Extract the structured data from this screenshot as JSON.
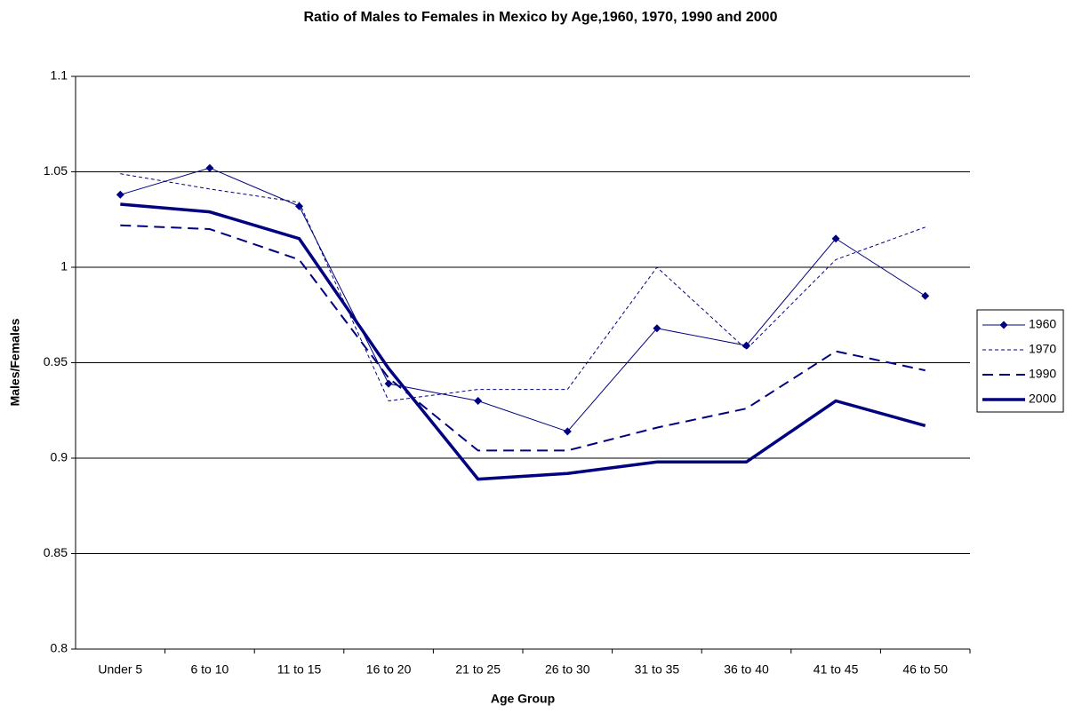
{
  "chart_data": {
    "type": "line",
    "title": "Ratio of Males to Females in Mexico by Age,1960, 1970, 1990 and 2000",
    "x_label": "Age Group",
    "y_label": "Males/Females",
    "categories": [
      "Under 5",
      "6 to 10",
      "11 to 15",
      "16 to 20",
      "21 to 25",
      "26 to 30",
      "31 to 35",
      "36 to 40",
      "41 to 45",
      "46 to 50"
    ],
    "series": [
      {
        "name": "1960",
        "color": "#000080",
        "width": 1,
        "dash": "none",
        "marker": "diamond",
        "values": [
          1.038,
          1.052,
          1.032,
          0.939,
          0.93,
          0.914,
          0.968,
          0.959,
          1.015,
          0.985
        ]
      },
      {
        "name": "1970",
        "color": "#000080",
        "width": 1,
        "dash": "4 3",
        "marker": "none",
        "values": [
          1.049,
          1.041,
          1.034,
          0.93,
          0.936,
          0.936,
          1.0,
          0.957,
          1.004,
          1.021
        ]
      },
      {
        "name": "1990",
        "color": "#000080",
        "width": 2,
        "dash": "12 7",
        "marker": "none",
        "values": [
          1.022,
          1.02,
          1.004,
          0.942,
          0.904,
          0.904,
          0.916,
          0.926,
          0.956,
          0.946
        ]
      },
      {
        "name": "2000",
        "color": "#000080",
        "width": 3.5,
        "dash": "none",
        "marker": "none",
        "values": [
          1.033,
          1.029,
          1.015,
          0.947,
          0.889,
          0.892,
          0.898,
          0.898,
          0.93,
          0.917
        ]
      }
    ],
    "ylim": [
      0.8,
      1.1
    ],
    "yticks": [
      0.8,
      0.85,
      0.9,
      0.95,
      1,
      1.05,
      1.1
    ],
    "grid": true,
    "legend": "right"
  }
}
